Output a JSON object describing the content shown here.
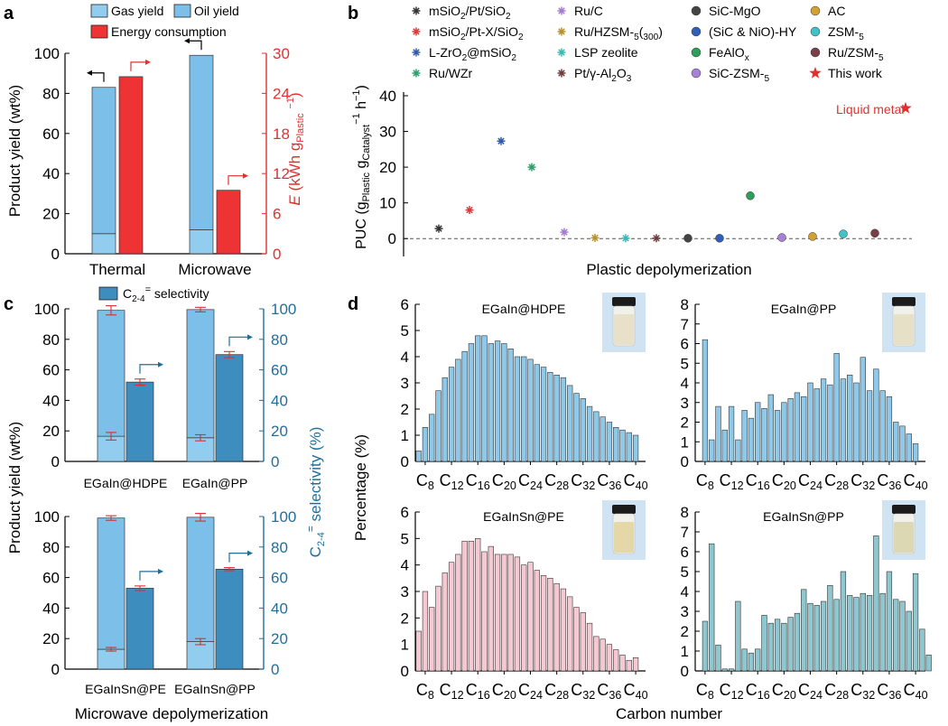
{
  "colors": {
    "light_blue": "#92cdf0",
    "sky_blue": "#7cc0ea",
    "red": "#ee3334",
    "teal": "#3d8dbf",
    "teal_axis": "#1f6e9a",
    "pink": "#f6c9d2",
    "blue_hist": "#8fc9ea",
    "teal_hist": "#8ec7cf",
    "errbar": "#d63030"
  },
  "panel_a": {
    "letter": "a",
    "legend": [
      "Gas yield",
      "Oil yield",
      "Energy consumption"
    ],
    "ylabel": "Product yield (wt%)",
    "y2label": "E (kWh g",
    "y2label_sub": "Plastic",
    "y2label_sup": "−1",
    "y2label_end": ")",
    "chart_data": {
      "type": "bar",
      "categories": [
        "Thermal",
        "Microwave"
      ],
      "series": [
        {
          "name": "Gas yield",
          "values": [
            10,
            12
          ]
        },
        {
          "name": "Oil yield",
          "values": [
            73,
            87
          ]
        },
        {
          "name": "Energy consumption",
          "axis": "right",
          "values": [
            26.5,
            9.5
          ]
        }
      ],
      "ylim": [
        0,
        100
      ],
      "yticks": [
        "0",
        "20",
        "40",
        "60",
        "80",
        "100"
      ],
      "y2lim": [
        0,
        30
      ],
      "y2ticks": [
        "0",
        "6",
        "12",
        "18",
        "24",
        "30"
      ]
    }
  },
  "panel_b": {
    "letter": "b",
    "ylabel_main": "PUC (g",
    "ylabel_sub1": "Plastic",
    "ylabel_mid": " g",
    "ylabel_sub2": "Catalyst",
    "ylabel_sup": "−1",
    "ylabel_mid2": " h",
    "ylabel_sup2": "−1",
    "ylabel_end": ")",
    "xlabel": "Plastic depolymerization",
    "annotation": "Liquid metal",
    "chart_data": {
      "type": "scatter",
      "ylim": [
        -5,
        40
      ],
      "yticks": [
        "0",
        "10",
        "20",
        "30",
        "40"
      ],
      "points": [
        {
          "name": "mSiO2/Pt/SiO2",
          "y": 2.8,
          "color": "#333333",
          "marker": "asterisk"
        },
        {
          "name": "mSiO2/Pt-X/SiO2",
          "y": 8,
          "color": "#d63a3a",
          "marker": "asterisk"
        },
        {
          "name": "L-ZrO2@mSiO2",
          "y": 27.3,
          "color": "#2f5aa8",
          "marker": "asterisk"
        },
        {
          "name": "Ru/WZr",
          "y": 20,
          "color": "#2e9e6c",
          "marker": "asterisk"
        },
        {
          "name": "Ru/C",
          "y": 1.8,
          "color": "#a37ad0",
          "marker": "asterisk"
        },
        {
          "name": "Ru/HZSM-5(300)",
          "y": 0.2,
          "color": "#b8902a",
          "marker": "asterisk"
        },
        {
          "name": "LSP zeolite",
          "y": 0.1,
          "color": "#37b9b0",
          "marker": "asterisk"
        },
        {
          "name": "Pt/γ-Al2O3",
          "y": 0.1,
          "color": "#6e3a3a",
          "marker": "asterisk"
        },
        {
          "name": "SiC-MgO",
          "y": 0.1,
          "color": "#444444",
          "marker": "circle"
        },
        {
          "name": "(SiC & NiO)-HY",
          "y": 0.1,
          "color": "#2f5fb8",
          "marker": "circle"
        },
        {
          "name": "FeAlOx",
          "y": 12,
          "color": "#2e9e5a",
          "marker": "circle"
        },
        {
          "name": "SiC-ZSM-5",
          "y": 0.3,
          "color": "#a880d8",
          "marker": "circle"
        },
        {
          "name": "AC",
          "y": 0.6,
          "color": "#d2a132",
          "marker": "circle"
        },
        {
          "name": "ZSM-5",
          "y": 1.3,
          "color": "#3fc2c8",
          "marker": "circle"
        },
        {
          "name": "Ru/ZSM-5",
          "y": 1.5,
          "color": "#7a4048",
          "marker": "circle"
        },
        {
          "name": "This work",
          "y": 36.5,
          "color": "#e0302f",
          "marker": "star"
        }
      ],
      "legend_cols": [
        [
          "mSiO2/Pt/SiO2",
          "mSiO2/Pt-X/SiO2",
          "L-ZrO2@mSiO2",
          "Ru/WZr"
        ],
        [
          "Ru/C",
          "Ru/HZSM-5(300)",
          "LSP zeolite",
          "Pt/γ-Al2O3"
        ],
        [
          "SiC-MgO",
          "(SiC & NiO)-HY",
          "FeAlOx",
          "SiC-ZSM-5"
        ],
        [
          "AC",
          "ZSM-5",
          "Ru/ZSM-5",
          "This work"
        ]
      ]
    }
  },
  "panel_c": {
    "letter": "c",
    "legend": "C2-4= selectivity",
    "ylabel": "Product yield (wt%)",
    "y2label": "C2-4= selectivity (%)",
    "xlabel": "Microwave depolymerization",
    "yticks": [
      "0",
      "20",
      "40",
      "60",
      "80",
      "100"
    ],
    "top": {
      "categories": [
        "EGaIn@HDPE",
        "EGaIn@PP"
      ],
      "gas": [
        16.5,
        15.5
      ],
      "total": [
        99,
        99.5
      ],
      "total_err": [
        3,
        1.5
      ],
      "gas_err": [
        2.5,
        2
      ],
      "selectivity": [
        52,
        70
      ],
      "selectivity_err": [
        2,
        2
      ]
    },
    "bottom": {
      "categories": [
        "EGaInSn@PE",
        "EGaInSn@PP"
      ],
      "gas": [
        13,
        18
      ],
      "total": [
        99,
        99.5
      ],
      "total_err": [
        1.5,
        2.5
      ],
      "gas_err": [
        1.2,
        2
      ],
      "selectivity": [
        53,
        65.5
      ],
      "selectivity_err": [
        1.5,
        1
      ]
    }
  },
  "panel_d": {
    "letter": "d",
    "ylabel": "Percentage (%)",
    "xlabel": "Carbon number",
    "xtick_labels": [
      "C8",
      "C12",
      "C16",
      "C20",
      "C24",
      "C28",
      "C32",
      "C36",
      "C40"
    ],
    "charts": [
      {
        "title": "EGaIn@HDPE",
        "ylim": [
          0,
          6
        ],
        "yticks": [
          "0",
          "1",
          "2",
          "3",
          "4",
          "5",
          "6"
        ],
        "start": 7,
        "values": [
          0.4,
          1.3,
          1.8,
          2.7,
          3.2,
          3.6,
          3.9,
          4.2,
          4.5,
          4.8,
          4.8,
          4.5,
          4.6,
          4.5,
          4.3,
          4.0,
          4.0,
          3.9,
          3.7,
          3.6,
          3.4,
          3.3,
          3.2,
          2.9,
          2.6,
          2.4,
          2.1,
          1.9,
          1.7,
          1.5,
          1.3,
          1.2,
          1.1,
          1.0
        ]
      },
      {
        "title": "EGaIn@PP",
        "ylim": [
          0,
          8
        ],
        "yticks": [
          "0",
          "1",
          "2",
          "3",
          "4",
          "5",
          "6",
          "7",
          "8"
        ],
        "start": 8,
        "values": [
          6.2,
          1.1,
          2.8,
          1.6,
          2.8,
          1.1,
          2.6,
          2.2,
          3.0,
          2.7,
          3.4,
          2.6,
          3.0,
          3.2,
          3.5,
          3.3,
          4.0,
          3.7,
          4.2,
          3.9,
          5.5,
          4.2,
          4.4,
          4.0,
          5.3,
          3.6,
          4.7,
          3.6,
          3.3,
          2.0,
          1.8,
          1.4,
          0.9
        ]
      },
      {
        "title": "EGaInSn@PE",
        "ylim": [
          0,
          6
        ],
        "yticks": [
          "0",
          "1",
          "2",
          "3",
          "4",
          "5",
          "6"
        ],
        "start": 7,
        "values": [
          1.5,
          3.0,
          2.4,
          3.2,
          3.7,
          4.1,
          4.4,
          4.9,
          4.9,
          5.0,
          4.5,
          4.7,
          4.4,
          4.4,
          4.4,
          4.3,
          4.0,
          4.1,
          3.8,
          3.6,
          3.5,
          3.3,
          3.1,
          2.8,
          2.4,
          2.2,
          1.8,
          1.3,
          1.2,
          1.0,
          0.8,
          0.6,
          0.4,
          0.5
        ]
      },
      {
        "title": "EGaInSn@PP",
        "ylim": [
          0,
          8
        ],
        "yticks": [
          "0",
          "1",
          "2",
          "3",
          "4",
          "5",
          "6",
          "7",
          "8"
        ],
        "start": 8,
        "values": [
          2.5,
          6.4,
          1.3,
          0.1,
          0.1,
          3.5,
          1.1,
          0.9,
          1.1,
          2.8,
          2.4,
          2.6,
          2.4,
          2.7,
          2.9,
          4.1,
          3.4,
          3.3,
          3.5,
          4.3,
          3.6,
          5.0,
          3.8,
          3.7,
          3.9,
          3.8,
          6.8,
          3.9,
          5.0,
          3.6,
          3.5,
          3.0,
          4.9,
          2.1,
          0.8
        ]
      }
    ]
  }
}
